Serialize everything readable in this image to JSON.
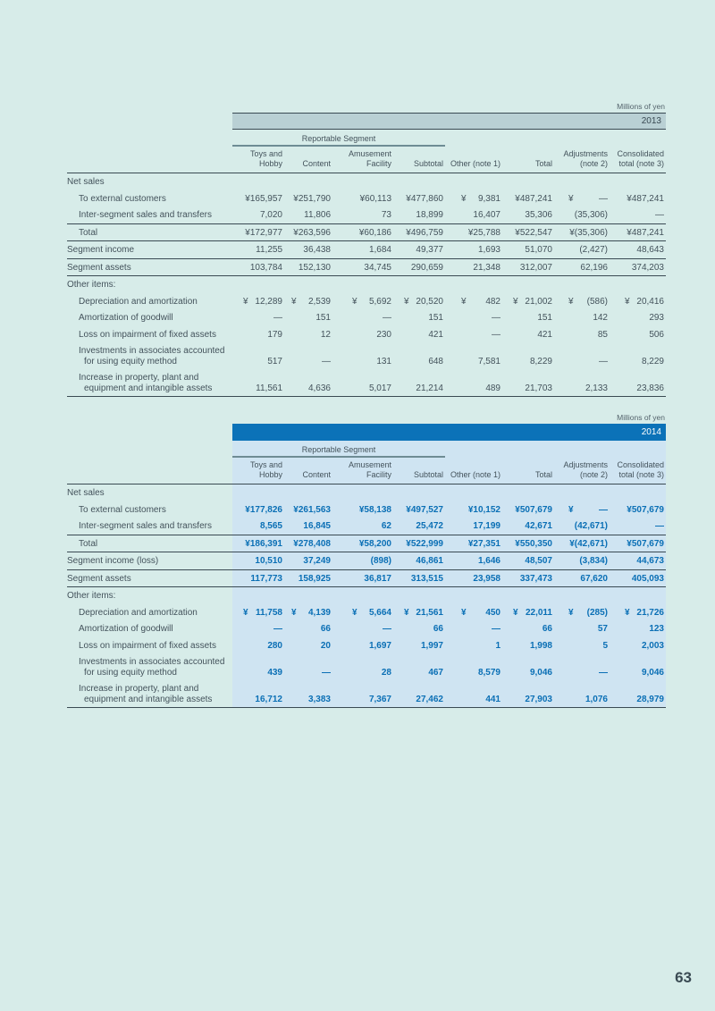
{
  "page": {
    "number": "63"
  },
  "colors": {
    "page_bg": "#d7ece9",
    "band_gray_2013": "#b9d0d4",
    "accent_blue_2014": "#0b72b8",
    "tint_2014": "#cfe4f2",
    "number_blue_2014": "#0a6fb5",
    "text_dark": "#43525b"
  },
  "tables": [
    {
      "unit_label": "Millions of yen",
      "year": "2013",
      "group_header": "Reportable Segment",
      "columns": [
        "Toys and\nHobby",
        "Content",
        "Amusement\nFacility",
        "Subtotal",
        "Other (note 1)",
        "Total",
        "Adjustments\n(note 2)",
        "Consolidated\ntotal (note 3)"
      ],
      "rows": [
        {
          "label": "Net sales",
          "indent": 0,
          "cells": [
            "",
            "",
            "",
            "",
            "",
            "",
            "",
            ""
          ]
        },
        {
          "label": "To external customers",
          "indent": 1,
          "cells": [
            "¥165,957",
            "¥251,790",
            "¥60,113",
            "¥477,860",
            "¥ 9,381",
            "¥487,241",
            "¥ —",
            "¥487,241"
          ]
        },
        {
          "label": "Inter-segment sales and transfers",
          "indent": 1,
          "rule_below": true,
          "cells": [
            "7,020",
            "11,806",
            "73",
            "18,899",
            "16,407",
            "35,306",
            "(35,306)",
            "—"
          ]
        },
        {
          "label": "Total",
          "indent": 1,
          "rule_below": true,
          "cells": [
            "¥172,977",
            "¥263,596",
            "¥60,186",
            "¥496,759",
            "¥25,788",
            "¥522,547",
            "¥(35,306)",
            "¥487,241"
          ]
        },
        {
          "label": "Segment income",
          "indent": 0,
          "rule_below": true,
          "cells": [
            "11,255",
            "36,438",
            "1,684",
            "49,377",
            "1,693",
            "51,070",
            "(2,427)",
            "48,643"
          ]
        },
        {
          "label": "Segment assets",
          "indent": 0,
          "rule_below": true,
          "cells": [
            "103,784",
            "152,130",
            "34,745",
            "290,659",
            "21,348",
            "312,007",
            "62,196",
            "374,203"
          ]
        },
        {
          "label": "Other items:",
          "indent": 0,
          "cells": [
            "",
            "",
            "",
            "",
            "",
            "",
            "",
            ""
          ]
        },
        {
          "label": "Depreciation and amortization",
          "indent": 1,
          "cells": [
            "¥ 12,289",
            "¥ 2,539",
            "¥ 5,692",
            "¥ 20,520",
            "¥ 482",
            "¥ 21,002",
            "¥ (586)",
            "¥ 20,416"
          ]
        },
        {
          "label": "Amortization of goodwill",
          "indent": 1,
          "cells": [
            "—",
            "151",
            "—",
            "151",
            "—",
            "151",
            "142",
            "293"
          ]
        },
        {
          "label": "Loss on impairment of fixed assets",
          "indent": 1,
          "cells": [
            "179",
            "12",
            "230",
            "421",
            "—",
            "421",
            "85",
            "506"
          ]
        },
        {
          "label": "Investments in associates accounted\nfor using equity method",
          "indent": 1,
          "cells": [
            "517",
            "—",
            "131",
            "648",
            "7,581",
            "8,229",
            "—",
            "8,229"
          ]
        },
        {
          "label": "Increase in property, plant and\nequipment and intangible assets",
          "indent": 1,
          "rule_below": true,
          "cells": [
            "11,561",
            "4,636",
            "5,017",
            "21,214",
            "489",
            "21,703",
            "2,133",
            "23,836"
          ]
        }
      ]
    },
    {
      "unit_label": "Millions of yen",
      "year": "2014",
      "group_header": "Reportable Segment",
      "columns": [
        "Toys and\nHobby",
        "Content",
        "Amusement\nFacility",
        "Subtotal",
        "Other (note 1)",
        "Total",
        "Adjustments\n(note 2)",
        "Consolidated\ntotal (note 3)"
      ],
      "rows": [
        {
          "label": "Net sales",
          "indent": 0,
          "cells": [
            "",
            "",
            "",
            "",
            "",
            "",
            "",
            ""
          ]
        },
        {
          "label": "To external customers",
          "indent": 1,
          "cells": [
            "¥177,826",
            "¥261,563",
            "¥58,138",
            "¥497,527",
            "¥10,152",
            "¥507,679",
            "¥ —",
            "¥507,679"
          ]
        },
        {
          "label": "Inter-segment sales and transfers",
          "indent": 1,
          "rule_below": true,
          "cells": [
            "8,565",
            "16,845",
            "62",
            "25,472",
            "17,199",
            "42,671",
            "(42,671)",
            "—"
          ]
        },
        {
          "label": "Total",
          "indent": 1,
          "rule_below": true,
          "cells": [
            "¥186,391",
            "¥278,408",
            "¥58,200",
            "¥522,999",
            "¥27,351",
            "¥550,350",
            "¥(42,671)",
            "¥507,679"
          ]
        },
        {
          "label": "Segment income (loss)",
          "indent": 0,
          "rule_below": true,
          "cells": [
            "10,510",
            "37,249",
            "(898)",
            "46,861",
            "1,646",
            "48,507",
            "(3,834)",
            "44,673"
          ]
        },
        {
          "label": "Segment assets",
          "indent": 0,
          "rule_below": true,
          "cells": [
            "117,773",
            "158,925",
            "36,817",
            "313,515",
            "23,958",
            "337,473",
            "67,620",
            "405,093"
          ]
        },
        {
          "label": "Other items:",
          "indent": 0,
          "cells": [
            "",
            "",
            "",
            "",
            "",
            "",
            "",
            ""
          ]
        },
        {
          "label": "Depreciation and amortization",
          "indent": 1,
          "cells": [
            "¥ 11,758",
            "¥ 4,139",
            "¥ 5,664",
            "¥ 21,561",
            "¥ 450",
            "¥ 22,011",
            "¥ (285)",
            "¥ 21,726"
          ]
        },
        {
          "label": "Amortization of goodwill",
          "indent": 1,
          "cells": [
            "—",
            "66",
            "—",
            "66",
            "—",
            "66",
            "57",
            "123"
          ]
        },
        {
          "label": "Loss on impairment of fixed assets",
          "indent": 1,
          "cells": [
            "280",
            "20",
            "1,697",
            "1,997",
            "1",
            "1,998",
            "5",
            "2,003"
          ]
        },
        {
          "label": "Investments in associates accounted\nfor using equity method",
          "indent": 1,
          "cells": [
            "439",
            "—",
            "28",
            "467",
            "8,579",
            "9,046",
            "—",
            "9,046"
          ]
        },
        {
          "label": "Increase in property, plant and\nequipment and intangible assets",
          "indent": 1,
          "rule_below": true,
          "cells": [
            "16,712",
            "3,383",
            "7,367",
            "27,462",
            "441",
            "27,903",
            "1,076",
            "28,979"
          ]
        }
      ]
    }
  ]
}
